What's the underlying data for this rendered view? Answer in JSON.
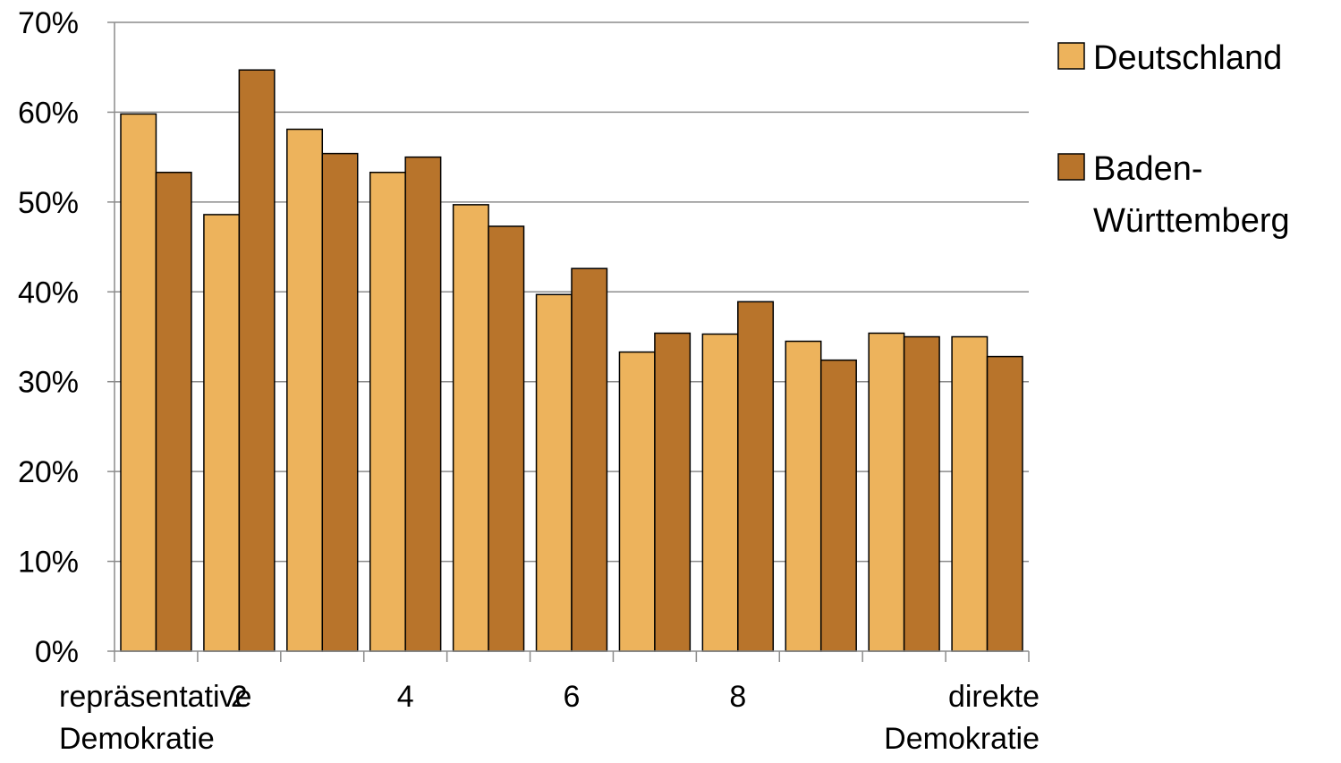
{
  "chart_data": {
    "type": "bar",
    "categories": [
      "1",
      "2",
      "3",
      "4",
      "5",
      "6",
      "7",
      "8",
      "9",
      "10",
      "11"
    ],
    "x_tick_labels": [
      {
        "category": "1",
        "lines": [
          "repräsentative",
          "Demokratie"
        ],
        "align": "start"
      },
      {
        "category": "2",
        "lines": [
          "2"
        ],
        "align": "middle"
      },
      {
        "category": "4",
        "lines": [
          "4"
        ],
        "align": "middle"
      },
      {
        "category": "6",
        "lines": [
          "6"
        ],
        "align": "middle"
      },
      {
        "category": "8",
        "lines": [
          "8"
        ],
        "align": "middle"
      },
      {
        "category": "11",
        "lines": [
          "direkte",
          "Demokratie"
        ],
        "align": "end"
      }
    ],
    "series": [
      {
        "name": "Deutschland",
        "color": "#EDB35C",
        "values": [
          59.8,
          48.6,
          58.1,
          53.3,
          49.7,
          39.7,
          33.3,
          35.3,
          34.5,
          35.4,
          35.0
        ]
      },
      {
        "name": "Baden-Württemberg",
        "legend_lines": [
          "Baden-",
          "Württemberg"
        ],
        "color": "#B8742B",
        "values": [
          53.3,
          64.7,
          55.4,
          55.0,
          47.3,
          42.6,
          35.4,
          38.9,
          32.4,
          35.0,
          32.8
        ]
      }
    ],
    "ylim": [
      0,
      70
    ],
    "y_ticks": [
      0,
      10,
      20,
      30,
      40,
      50,
      60,
      70
    ],
    "y_tick_suffix": "%",
    "grid": true,
    "legend_position": "right",
    "title": "",
    "xlabel": "",
    "ylabel": ""
  }
}
